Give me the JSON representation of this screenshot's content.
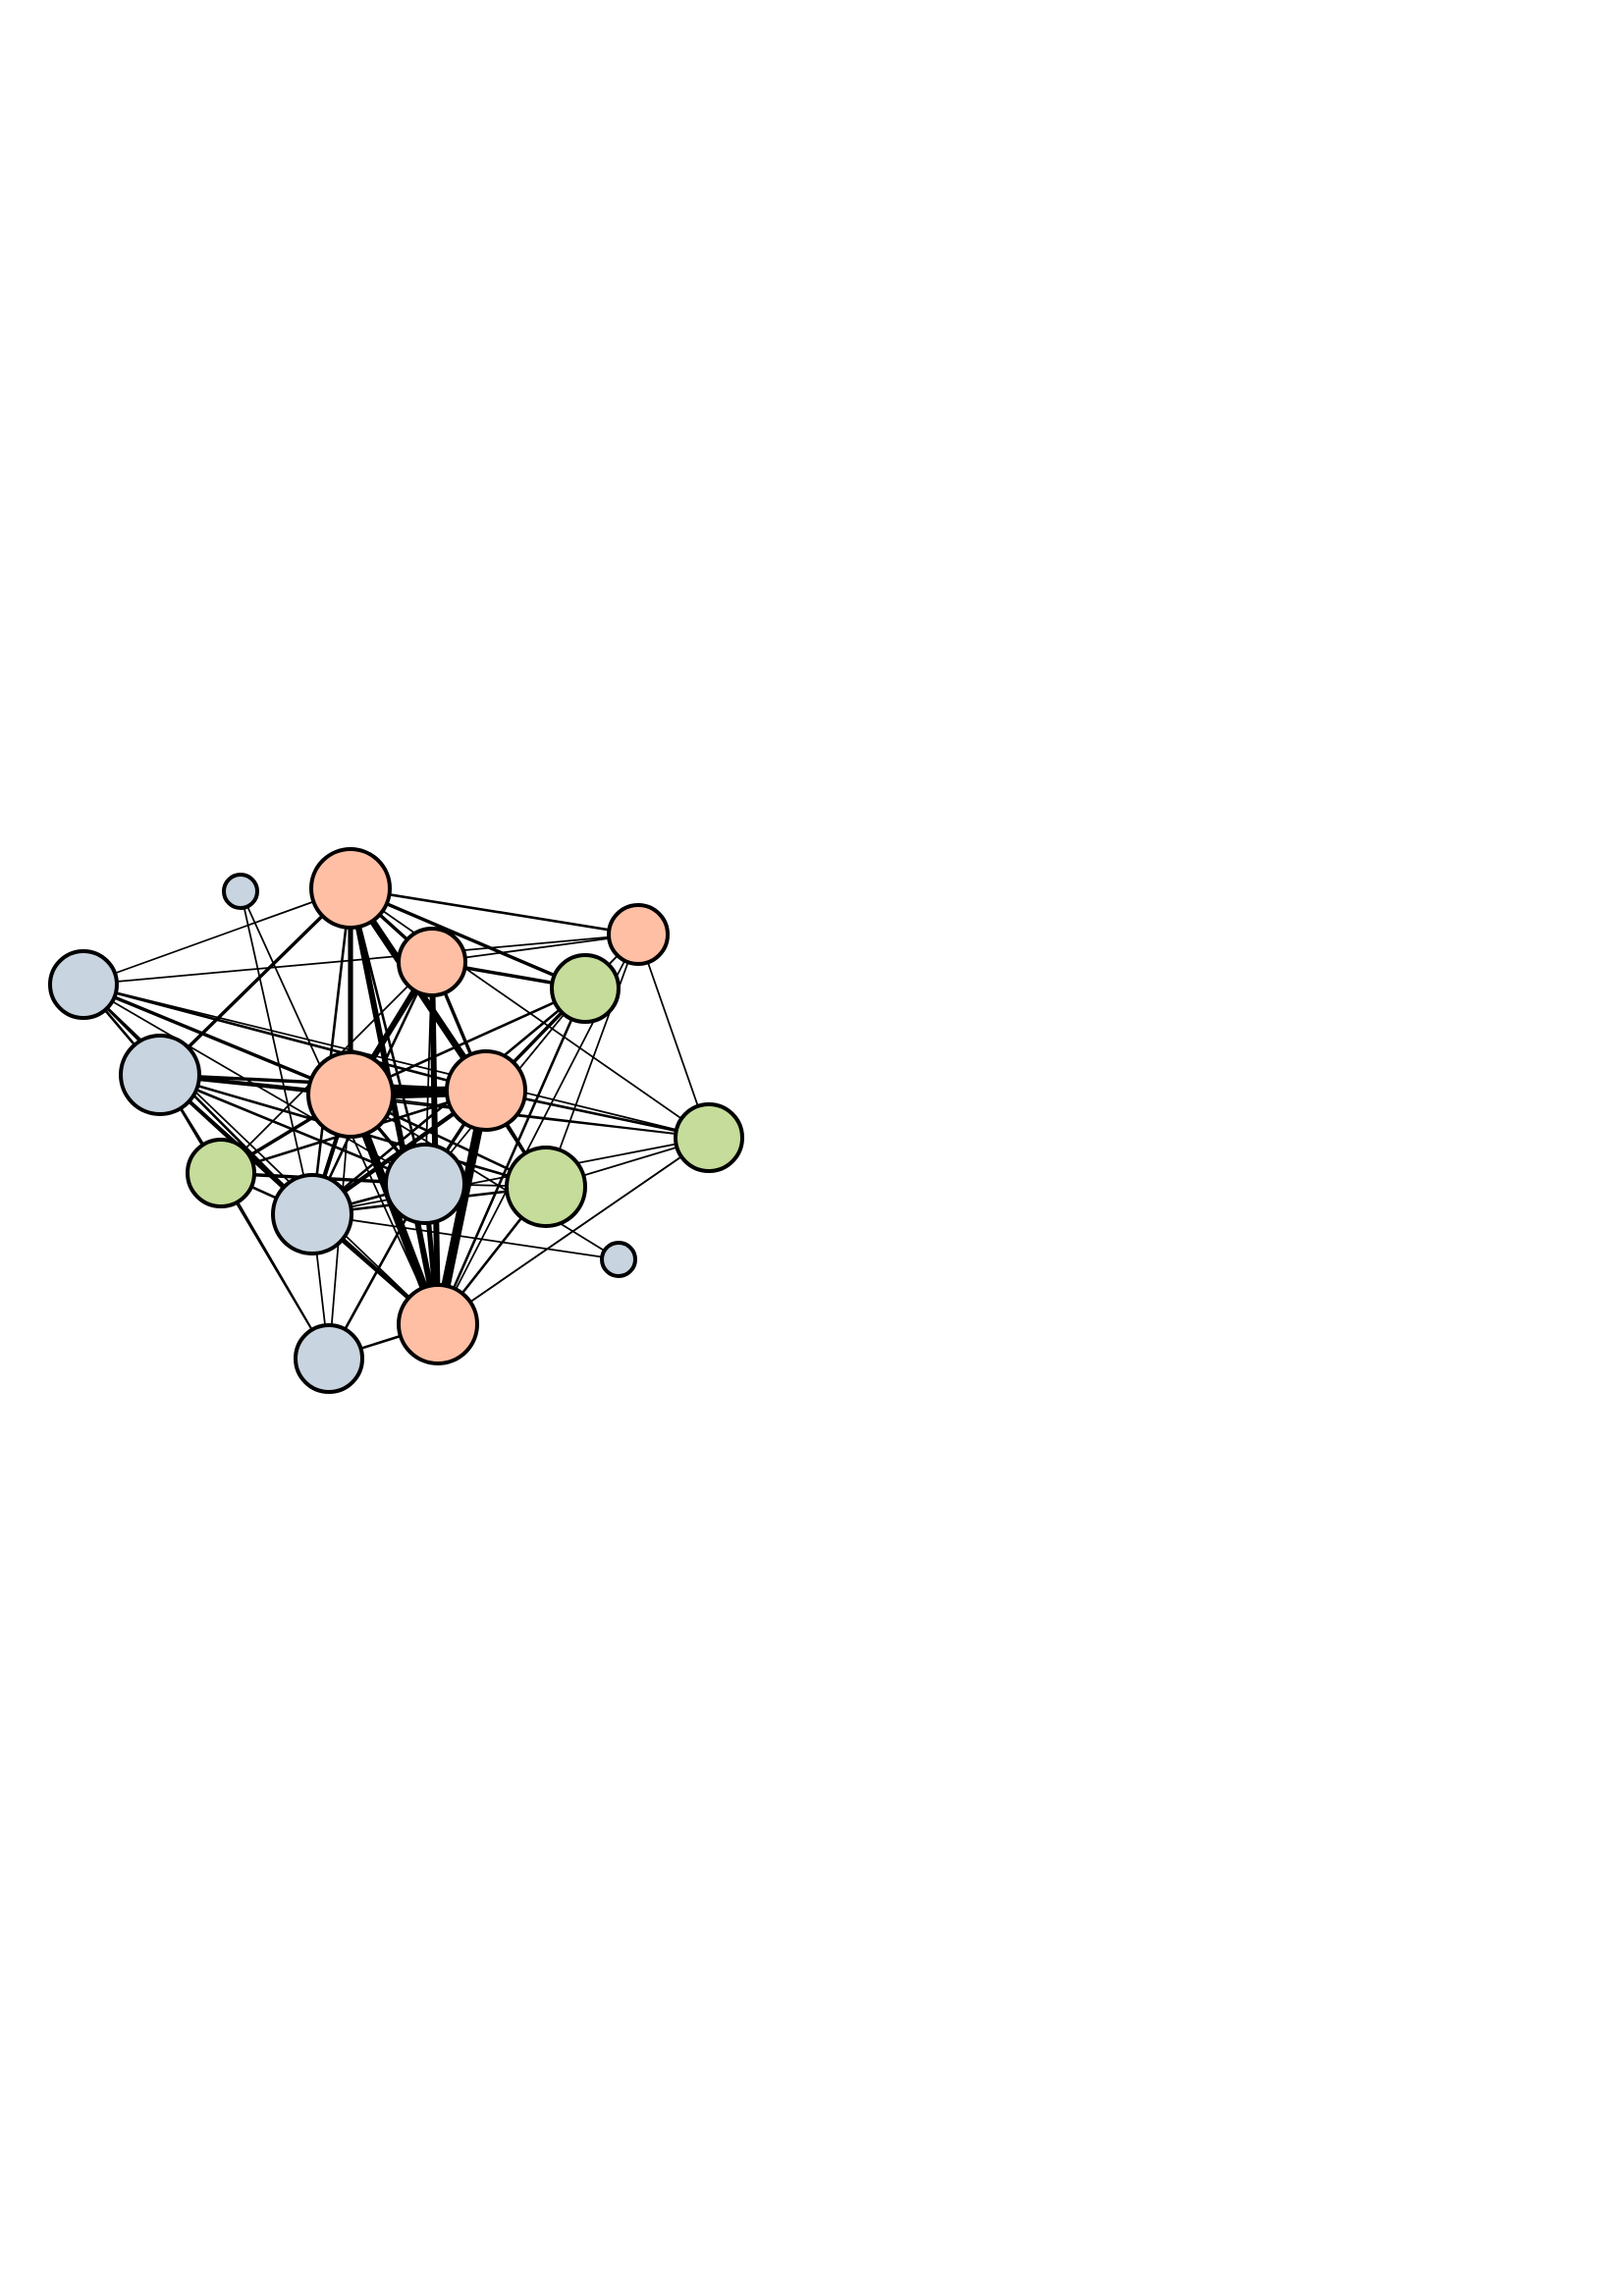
{
  "colors": {
    "salmon": "#ffbfa4",
    "blue_gray": "#c8d4df",
    "green": "#c5dc9a",
    "edge": "#000000",
    "outline": "#000000"
  },
  "diagram": {
    "type": "network-graph",
    "nodes": [
      {
        "id": "n1",
        "group": "salmon",
        "size": 3
      },
      {
        "id": "n2",
        "group": "blue_gray",
        "size": 1
      },
      {
        "id": "n3",
        "group": "salmon",
        "size": 2
      },
      {
        "id": "n4",
        "group": "green",
        "size": 3
      },
      {
        "id": "n5",
        "group": "salmon",
        "size": 4
      },
      {
        "id": "n6",
        "group": "blue_gray",
        "size": 3
      },
      {
        "id": "n7",
        "group": "blue_gray",
        "size": 4
      },
      {
        "id": "n8",
        "group": "salmon",
        "size": 5
      },
      {
        "id": "n9",
        "group": "salmon",
        "size": 4
      },
      {
        "id": "n10",
        "group": "green",
        "size": 3
      },
      {
        "id": "n11",
        "group": "green",
        "size": 3
      },
      {
        "id": "n12",
        "group": "blue_gray",
        "size": 4
      },
      {
        "id": "n13",
        "group": "blue_gray",
        "size": 4
      },
      {
        "id": "n14",
        "group": "green",
        "size": 4
      },
      {
        "id": "n15",
        "group": "blue_gray",
        "size": 1
      },
      {
        "id": "n16",
        "group": "salmon",
        "size": 4
      },
      {
        "id": "n17",
        "group": "blue_gray",
        "size": 3
      }
    ],
    "edges": [
      {
        "s": "n8",
        "t": "n9",
        "w": 12
      },
      {
        "s": "n8",
        "t": "n16",
        "w": 9
      },
      {
        "s": "n9",
        "t": "n16",
        "w": 10
      },
      {
        "s": "n1",
        "t": "n16",
        "w": 6
      },
      {
        "s": "n1",
        "t": "n8",
        "w": 6
      },
      {
        "s": "n5",
        "t": "n9",
        "w": 7
      },
      {
        "s": "n5",
        "t": "n16",
        "w": 6
      },
      {
        "s": "n5",
        "t": "n8",
        "w": 5
      },
      {
        "s": "n7",
        "t": "n8",
        "w": 4
      },
      {
        "s": "n7",
        "t": "n16",
        "w": 3
      },
      {
        "s": "n12",
        "t": "n8",
        "w": 4
      },
      {
        "s": "n12",
        "t": "n9",
        "w": 4
      },
      {
        "s": "n13",
        "t": "n16",
        "w": 5
      },
      {
        "s": "n13",
        "t": "n9",
        "w": 3
      },
      {
        "s": "n13",
        "t": "n8",
        "w": 3
      },
      {
        "s": "n6",
        "t": "n8",
        "w": 3
      },
      {
        "s": "n6",
        "t": "n7",
        "w": 2
      },
      {
        "s": "n6",
        "t": "n12",
        "w": 2
      },
      {
        "s": "n6",
        "t": "n9",
        "w": 2
      },
      {
        "s": "n6",
        "t": "n5",
        "w": 1
      },
      {
        "s": "n6",
        "t": "n13",
        "w": 1
      },
      {
        "s": "n6",
        "t": "n3",
        "w": 1
      },
      {
        "s": "n7",
        "t": "n12",
        "w": 3
      },
      {
        "s": "n7",
        "t": "n9",
        "w": 3
      },
      {
        "s": "n7",
        "t": "n13",
        "w": 2
      },
      {
        "s": "n7",
        "t": "n5",
        "w": 3
      },
      {
        "s": "n7",
        "t": "n14",
        "w": 2
      },
      {
        "s": "n7",
        "t": "n10",
        "w": 2
      },
      {
        "s": "n7",
        "t": "n17",
        "w": 1
      },
      {
        "s": "n4",
        "t": "n5",
        "w": 3
      },
      {
        "s": "n4",
        "t": "n9",
        "w": 3
      },
      {
        "s": "n4",
        "t": "n8",
        "w": 2
      },
      {
        "s": "n4",
        "t": "n16",
        "w": 2
      },
      {
        "s": "n4",
        "t": "n12",
        "w": 2
      },
      {
        "s": "n1",
        "t": "n4",
        "w": 3
      },
      {
        "s": "n1",
        "t": "n5",
        "w": 3
      },
      {
        "s": "n1",
        "t": "n9",
        "w": 3
      },
      {
        "s": "n1",
        "t": "n3",
        "w": 1
      },
      {
        "s": "n1",
        "t": "n12",
        "w": 2
      },
      {
        "s": "n1",
        "t": "n13",
        "w": 1
      },
      {
        "s": "n1",
        "t": "n10",
        "w": 1
      },
      {
        "s": "n3",
        "t": "n5",
        "w": 2
      },
      {
        "s": "n3",
        "t": "n11",
        "w": 1
      },
      {
        "s": "n3",
        "t": "n14",
        "w": 1
      },
      {
        "s": "n3",
        "t": "n4",
        "w": 1
      },
      {
        "s": "n11",
        "t": "n9",
        "w": 2
      },
      {
        "s": "n11",
        "t": "n5",
        "w": 1
      },
      {
        "s": "n11",
        "t": "n8",
        "w": 1
      },
      {
        "s": "n11",
        "t": "n16",
        "w": 1
      },
      {
        "s": "n11",
        "t": "n7",
        "w": 1
      },
      {
        "s": "n11",
        "t": "n12",
        "w": 1
      },
      {
        "s": "n11",
        "t": "n14",
        "w": 1
      },
      {
        "s": "n14",
        "t": "n9",
        "w": 3
      },
      {
        "s": "n14",
        "t": "n8",
        "w": 2
      },
      {
        "s": "n14",
        "t": "n12",
        "w": 2
      },
      {
        "s": "n14",
        "t": "n16",
        "w": 2
      },
      {
        "s": "n14",
        "t": "n5",
        "w": 1
      },
      {
        "s": "n14",
        "t": "n13",
        "w": 1
      },
      {
        "s": "n10",
        "t": "n8",
        "w": 3
      },
      {
        "s": "n10",
        "t": "n13",
        "w": 3
      },
      {
        "s": "n10",
        "t": "n9",
        "w": 2
      },
      {
        "s": "n10",
        "t": "n12",
        "w": 2
      },
      {
        "s": "n10",
        "t": "n17",
        "w": 1
      },
      {
        "s": "n13",
        "t": "n17",
        "w": 2
      },
      {
        "s": "n13",
        "t": "n12",
        "w": 2
      },
      {
        "s": "n13",
        "t": "n5",
        "w": 2
      },
      {
        "s": "n12",
        "t": "n16",
        "w": 3
      },
      {
        "s": "n12",
        "t": "n5",
        "w": 2
      },
      {
        "s": "n17",
        "t": "n16",
        "w": 2
      },
      {
        "s": "n17",
        "t": "n8",
        "w": 1
      },
      {
        "s": "n17",
        "t": "n12",
        "w": 1
      },
      {
        "s": "n2",
        "t": "n12",
        "w": 1
      },
      {
        "s": "n2",
        "t": "n16",
        "w": 1
      },
      {
        "s": "n15",
        "t": "n12",
        "w": 1
      },
      {
        "s": "n15",
        "t": "n8",
        "w": 1
      },
      {
        "s": "n3",
        "t": "n9",
        "w": 1
      },
      {
        "s": "n3",
        "t": "n16",
        "w": 1
      },
      {
        "s": "n16",
        "t": "n11",
        "w": 1
      },
      {
        "s": "n6",
        "t": "n11",
        "w": 1
      },
      {
        "s": "n6",
        "t": "n16",
        "w": 1
      },
      {
        "s": "n4",
        "t": "n13",
        "w": 1
      },
      {
        "s": "n8",
        "t": "n13",
        "w": 2
      }
    ]
  }
}
